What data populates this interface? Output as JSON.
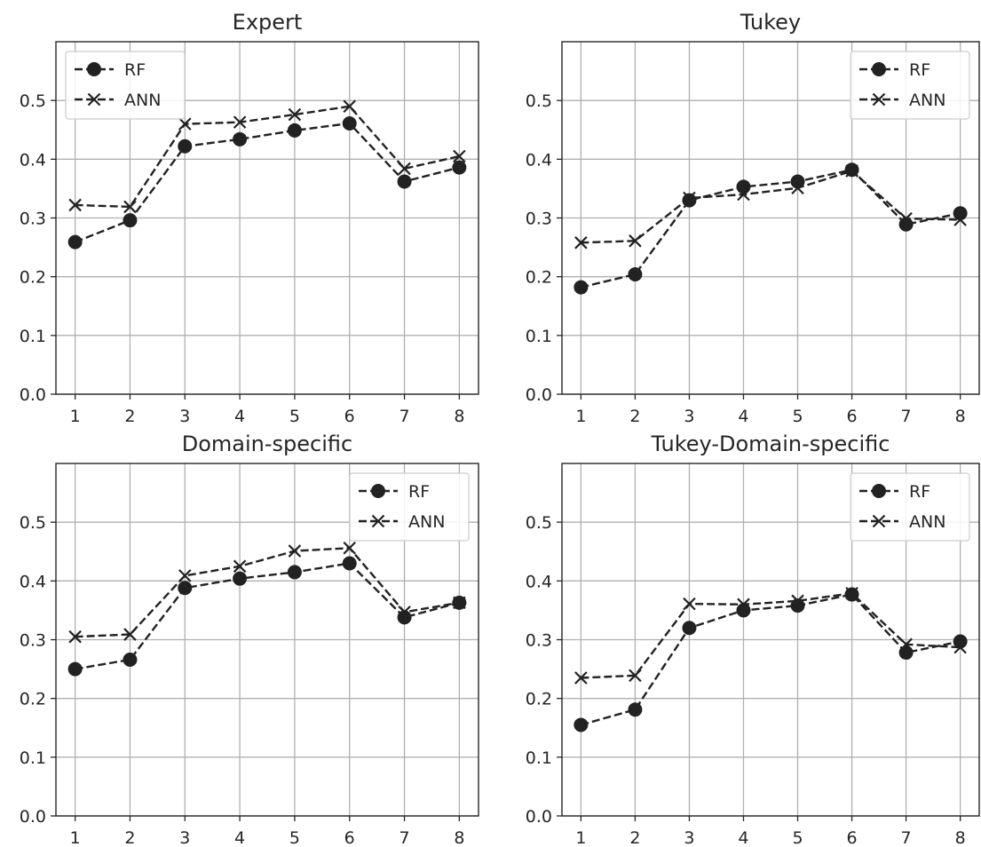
{
  "chart_data": [
    {
      "type": "line",
      "title": "Expert",
      "x": [
        1,
        2,
        3,
        4,
        5,
        6,
        7,
        8
      ],
      "ylim": [
        0,
        0.6
      ],
      "yticks": [
        "0.0",
        "0.1",
        "0.2",
        "0.3",
        "0.4",
        "0.5"
      ],
      "xticks": [
        "1",
        "2",
        "3",
        "4",
        "5",
        "6",
        "7",
        "8"
      ],
      "grid": true,
      "legend": "top-left",
      "series": [
        {
          "name": "RF",
          "marker": "circle",
          "values": [
            0.259,
            0.296,
            0.422,
            0.434,
            0.449,
            0.461,
            0.362,
            0.386
          ]
        },
        {
          "name": "ANN",
          "marker": "x",
          "values": [
            0.322,
            0.319,
            0.46,
            0.463,
            0.476,
            0.49,
            0.384,
            0.405
          ]
        }
      ]
    },
    {
      "type": "line",
      "title": "Tukey",
      "x": [
        1,
        2,
        3,
        4,
        5,
        6,
        7,
        8
      ],
      "ylim": [
        0,
        0.6
      ],
      "yticks": [
        "0.0",
        "0.1",
        "0.2",
        "0.3",
        "0.4",
        "0.5"
      ],
      "xticks": [
        "1",
        "2",
        "3",
        "4",
        "5",
        "6",
        "7",
        "8"
      ],
      "grid": true,
      "legend": "top-right",
      "series": [
        {
          "name": "RF",
          "marker": "circle",
          "values": [
            0.182,
            0.204,
            0.33,
            0.353,
            0.362,
            0.382,
            0.289,
            0.308
          ]
        },
        {
          "name": "ANN",
          "marker": "x",
          "values": [
            0.258,
            0.261,
            0.334,
            0.34,
            0.351,
            0.38,
            0.299,
            0.297
          ]
        }
      ]
    },
    {
      "type": "line",
      "title": "Domain-specific",
      "x": [
        1,
        2,
        3,
        4,
        5,
        6,
        7,
        8
      ],
      "ylim": [
        0,
        0.6
      ],
      "yticks": [
        "0.0",
        "0.1",
        "0.2",
        "0.3",
        "0.4",
        "0.5"
      ],
      "xticks": [
        "1",
        "2",
        "3",
        "4",
        "5",
        "6",
        "7",
        "8"
      ],
      "grid": true,
      "legend": "top-right",
      "series": [
        {
          "name": "RF",
          "marker": "circle",
          "values": [
            0.25,
            0.266,
            0.388,
            0.404,
            0.415,
            0.43,
            0.338,
            0.363
          ]
        },
        {
          "name": "ANN",
          "marker": "x",
          "values": [
            0.305,
            0.309,
            0.409,
            0.425,
            0.451,
            0.456,
            0.347,
            0.363
          ]
        }
      ]
    },
    {
      "type": "line",
      "title": "Tukey-Domain-specific",
      "x": [
        1,
        2,
        3,
        4,
        5,
        6,
        7,
        8
      ],
      "ylim": [
        0,
        0.6
      ],
      "yticks": [
        "0.0",
        "0.1",
        "0.2",
        "0.3",
        "0.4",
        "0.5"
      ],
      "xticks": [
        "1",
        "2",
        "3",
        "4",
        "5",
        "6",
        "7",
        "8"
      ],
      "grid": true,
      "legend": "top-right",
      "series": [
        {
          "name": "RF",
          "marker": "circle",
          "values": [
            0.155,
            0.181,
            0.32,
            0.35,
            0.358,
            0.377,
            0.278,
            0.297
          ]
        },
        {
          "name": "ANN",
          "marker": "x",
          "values": [
            0.235,
            0.239,
            0.361,
            0.36,
            0.366,
            0.379,
            0.292,
            0.287
          ]
        }
      ]
    }
  ],
  "colors": {
    "line": "#222222",
    "grid": "#b0b0b0",
    "axis": "#262626",
    "background": "#ffffff"
  }
}
